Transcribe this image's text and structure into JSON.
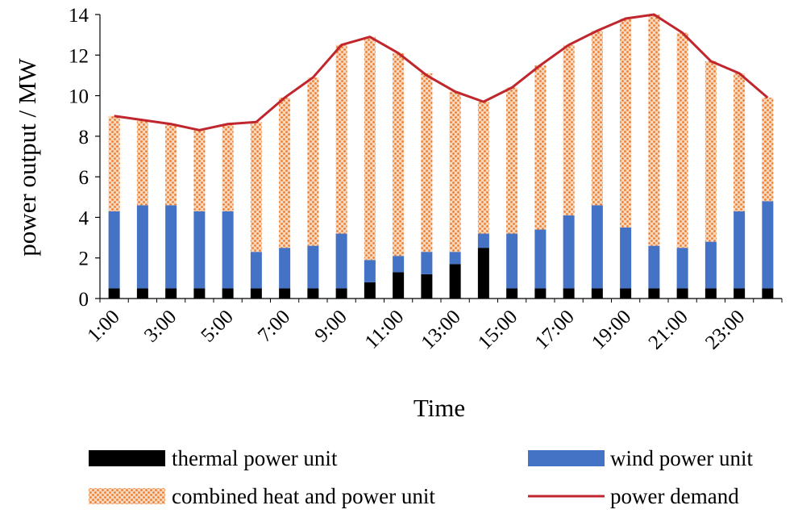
{
  "chart_data": {
    "type": "bar",
    "stacked": true,
    "title": "",
    "xlabel": "Time",
    "ylabel": "power output / MW",
    "ylim": [
      0,
      14
    ],
    "yticks": [
      0,
      2,
      4,
      6,
      8,
      10,
      12,
      14
    ],
    "x": [
      "1:00",
      "2:00",
      "3:00",
      "4:00",
      "5:00",
      "6:00",
      "7:00",
      "8:00",
      "9:00",
      "10:00",
      "11:00",
      "12:00",
      "13:00",
      "14:00",
      "15:00",
      "16:00",
      "17:00",
      "18:00",
      "19:00",
      "20:00",
      "21:00",
      "22:00",
      "23:00",
      "24:00"
    ],
    "x_tick_labels": [
      "1:00",
      "3:00",
      "5:00",
      "7:00",
      "9:00",
      "11:00",
      "13:00",
      "15:00",
      "17:00",
      "19:00",
      "21:00",
      "23:00"
    ],
    "series": [
      {
        "name": "thermal power unit",
        "kind": "bar",
        "color": "#000000",
        "values": [
          0.5,
          0.5,
          0.5,
          0.5,
          0.5,
          0.5,
          0.5,
          0.5,
          0.5,
          0.8,
          1.3,
          1.2,
          1.7,
          2.5,
          0.5,
          0.5,
          0.5,
          0.5,
          0.5,
          0.5,
          0.5,
          0.5,
          0.5,
          0.5
        ]
      },
      {
        "name": "wind power unit",
        "kind": "bar",
        "color": "#4472c4",
        "values": [
          3.8,
          4.1,
          4.1,
          3.8,
          3.8,
          1.8,
          2.0,
          2.1,
          2.7,
          1.1,
          0.8,
          1.1,
          0.6,
          0.7,
          2.7,
          2.9,
          3.6,
          4.1,
          3.0,
          2.1,
          2.0,
          2.3,
          3.8,
          4.3
        ]
      },
      {
        "name": "combined heat and power unit",
        "kind": "bar",
        "color": "#ed7d31",
        "values": [
          4.7,
          4.2,
          4.0,
          4.0,
          4.3,
          6.4,
          7.4,
          8.3,
          9.3,
          11.0,
          10.0,
          8.8,
          7.9,
          6.5,
          7.2,
          8.1,
          8.4,
          8.6,
          10.3,
          11.4,
          10.6,
          8.9,
          6.8,
          5.1
        ]
      },
      {
        "name": "power demand",
        "kind": "line",
        "color": "#c0262d",
        "values": [
          9.0,
          8.8,
          8.6,
          8.3,
          8.6,
          8.7,
          9.9,
          10.9,
          12.5,
          12.9,
          12.1,
          11.0,
          10.2,
          9.7,
          10.4,
          11.5,
          12.5,
          13.2,
          13.8,
          14.0,
          13.1,
          11.7,
          11.1,
          9.9
        ]
      }
    ],
    "legend": {
      "position": "bottom",
      "items": [
        "thermal power unit",
        "wind power unit",
        "combined heat and power unit",
        "power demand"
      ]
    }
  }
}
